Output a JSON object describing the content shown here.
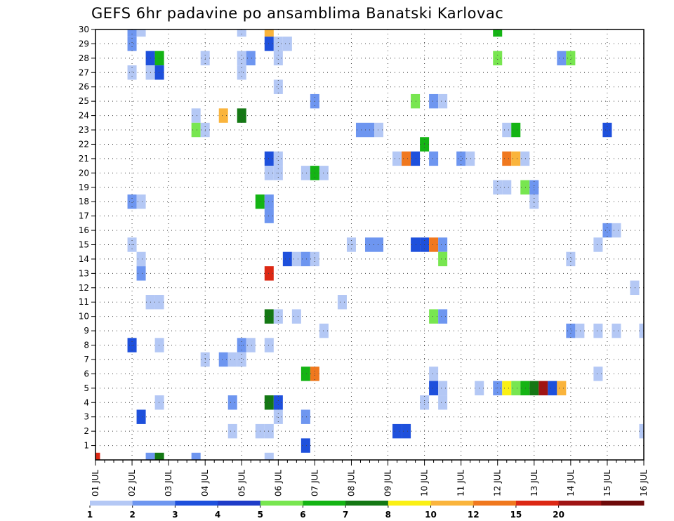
{
  "chart_data": {
    "type": "heatmap",
    "title": "GEFS 6hr padavine po ansamblima Banatski Karlovac",
    "xlabel": "",
    "ylabel": "",
    "x_tick_labels": [
      "01 JUL",
      "02 JUL",
      "03 JUL",
      "04 JUL",
      "05 JUL",
      "06 JUL",
      "07 JUL",
      "08 JUL",
      "09 JUL",
      "10 JUL",
      "11 JUL",
      "12 JUL",
      "13 JUL",
      "14 JUL",
      "15 JUL",
      "16 JUL"
    ],
    "y_tick_labels": [
      "1",
      "2",
      "3",
      "4",
      "5",
      "6",
      "7",
      "8",
      "9",
      "10",
      "11",
      "12",
      "13",
      "14",
      "15",
      "16",
      "17",
      "18",
      "19",
      "20",
      "21",
      "22",
      "23",
      "24",
      "25",
      "26",
      "27",
      "28",
      "29",
      "30"
    ],
    "xlim": [
      0,
      60
    ],
    "ylim": [
      0,
      30
    ],
    "x_unit": "6-hour steps from 01 JUL",
    "grid": true,
    "colorbar": {
      "position": "bottom",
      "labels": [
        "1",
        "2",
        "3",
        "4",
        "5",
        "6",
        "7",
        "8",
        "10",
        "12",
        "15",
        "20"
      ],
      "colors": [
        "#b4c8f5",
        "#6e96f0",
        "#1e50dc",
        "#1e3cc8",
        "#78e650",
        "#14b414",
        "#147814",
        "#faf014",
        "#fab43c",
        "#f0781e",
        "#dc2814",
        "#a01414",
        "#6e0a0a"
      ]
    },
    "cells": [
      [
        4,
        30,
        1
      ],
      [
        5,
        30,
        0
      ],
      [
        16,
        30,
        0
      ],
      [
        19,
        30,
        8
      ],
      [
        44,
        30,
        5
      ],
      [
        4,
        29,
        1
      ],
      [
        19,
        29,
        2
      ],
      [
        20,
        29,
        0
      ],
      [
        21,
        29,
        0
      ],
      [
        6,
        28,
        2
      ],
      [
        7,
        28,
        5
      ],
      [
        12,
        28,
        0
      ],
      [
        16,
        28,
        0
      ],
      [
        17,
        28,
        1
      ],
      [
        20,
        28,
        0
      ],
      [
        44,
        28,
        4
      ],
      [
        51,
        28,
        1
      ],
      [
        52,
        28,
        4
      ],
      [
        4,
        27,
        0
      ],
      [
        6,
        27,
        0
      ],
      [
        7,
        27,
        2
      ],
      [
        16,
        27,
        0
      ],
      [
        20,
        26,
        0
      ],
      [
        24,
        25,
        1
      ],
      [
        35,
        25,
        4
      ],
      [
        37,
        25,
        1
      ],
      [
        38,
        25,
        0
      ],
      [
        11,
        24,
        0
      ],
      [
        14,
        24,
        8
      ],
      [
        16,
        24,
        6
      ],
      [
        11,
        23,
        4
      ],
      [
        12,
        23,
        0
      ],
      [
        29,
        23,
        1
      ],
      [
        30,
        23,
        1
      ],
      [
        31,
        23,
        0
      ],
      [
        45,
        23,
        0
      ],
      [
        46,
        23,
        5
      ],
      [
        56,
        23,
        2
      ],
      [
        36,
        22,
        5
      ],
      [
        19,
        21,
        2
      ],
      [
        20,
        21,
        0
      ],
      [
        33,
        21,
        0
      ],
      [
        34,
        21,
        9
      ],
      [
        35,
        21,
        2
      ],
      [
        37,
        21,
        1
      ],
      [
        40,
        21,
        1
      ],
      [
        41,
        21,
        0
      ],
      [
        45,
        21,
        9
      ],
      [
        46,
        21,
        8
      ],
      [
        47,
        21,
        0
      ],
      [
        19,
        20,
        0
      ],
      [
        20,
        20,
        0
      ],
      [
        23,
        20,
        0
      ],
      [
        24,
        20,
        5
      ],
      [
        25,
        20,
        0
      ],
      [
        44,
        19,
        0
      ],
      [
        45,
        19,
        0
      ],
      [
        47,
        19,
        4
      ],
      [
        48,
        19,
        1
      ],
      [
        18,
        18,
        5
      ],
      [
        19,
        18,
        1
      ],
      [
        4,
        18,
        1
      ],
      [
        5,
        18,
        0
      ],
      [
        48,
        18,
        0
      ],
      [
        19,
        17,
        1
      ],
      [
        56,
        16,
        1
      ],
      [
        57,
        16,
        0
      ],
      [
        4,
        15,
        0
      ],
      [
        28,
        15,
        0
      ],
      [
        30,
        15,
        1
      ],
      [
        31,
        15,
        1
      ],
      [
        35,
        15,
        2
      ],
      [
        36,
        15,
        2
      ],
      [
        37,
        15,
        9
      ],
      [
        38,
        15,
        1
      ],
      [
        55,
        15,
        0
      ],
      [
        5,
        14,
        0
      ],
      [
        21,
        14,
        2
      ],
      [
        22,
        14,
        0
      ],
      [
        23,
        14,
        1
      ],
      [
        24,
        14,
        0
      ],
      [
        38,
        14,
        4
      ],
      [
        52,
        14,
        0
      ],
      [
        5,
        13,
        1
      ],
      [
        19,
        13,
        10
      ],
      [
        59,
        12,
        0
      ],
      [
        6,
        11,
        0
      ],
      [
        7,
        11,
        0
      ],
      [
        27,
        11,
        0
      ],
      [
        19,
        10,
        6
      ],
      [
        20,
        10,
        0
      ],
      [
        22,
        10,
        0
      ],
      [
        37,
        10,
        4
      ],
      [
        38,
        10,
        1
      ],
      [
        25,
        9,
        0
      ],
      [
        52,
        9,
        1
      ],
      [
        53,
        9,
        0
      ],
      [
        55,
        9,
        0
      ],
      [
        57,
        9,
        0
      ],
      [
        60,
        9,
        0
      ],
      [
        4,
        8,
        2
      ],
      [
        7,
        8,
        0
      ],
      [
        16,
        8,
        1
      ],
      [
        17,
        8,
        0
      ],
      [
        19,
        8,
        0
      ],
      [
        12,
        7,
        0
      ],
      [
        14,
        7,
        1
      ],
      [
        15,
        7,
        0
      ],
      [
        16,
        7,
        0
      ],
      [
        23,
        6,
        5
      ],
      [
        24,
        6,
        9
      ],
      [
        37,
        6,
        0
      ],
      [
        55,
        6,
        0
      ],
      [
        37,
        5,
        2
      ],
      [
        38,
        5,
        0
      ],
      [
        42,
        5,
        0
      ],
      [
        44,
        5,
        1
      ],
      [
        45,
        5,
        7
      ],
      [
        46,
        5,
        4
      ],
      [
        47,
        5,
        5
      ],
      [
        48,
        5,
        6
      ],
      [
        49,
        5,
        11
      ],
      [
        50,
        5,
        2
      ],
      [
        51,
        5,
        8
      ],
      [
        7,
        4,
        0
      ],
      [
        15,
        4,
        1
      ],
      [
        19,
        4,
        6
      ],
      [
        20,
        4,
        2
      ],
      [
        36,
        4,
        0
      ],
      [
        38,
        4,
        0
      ],
      [
        5,
        3,
        2
      ],
      [
        20,
        3,
        0
      ],
      [
        23,
        3,
        1
      ],
      [
        15,
        2,
        0
      ],
      [
        18,
        2,
        0
      ],
      [
        19,
        2,
        0
      ],
      [
        33,
        2,
        2
      ],
      [
        34,
        2,
        2
      ],
      [
        60,
        2,
        0
      ],
      [
        23,
        1,
        2
      ],
      [
        6,
        0,
        1
      ],
      [
        7,
        0,
        6
      ],
      [
        11,
        0,
        1
      ],
      [
        19,
        0,
        0
      ],
      [
        0,
        0,
        10
      ]
    ]
  }
}
